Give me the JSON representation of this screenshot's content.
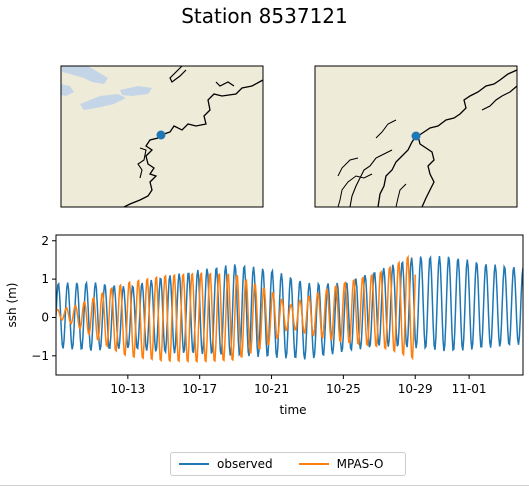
{
  "title": "Station 8537121",
  "maps": [
    {
      "name": "regional",
      "land_color": "#efebd9",
      "water_color": "#c5d5e8"
    },
    {
      "name": "local",
      "land_color": "#efebd9",
      "water_color": "#c5d5e8"
    }
  ],
  "station_marker_color": "#1f77b4",
  "chart_data": {
    "type": "line",
    "title": "",
    "xlabel": "time",
    "ylabel": "ssh (m)",
    "x_range_days": [
      "10-09",
      "11-04"
    ],
    "ylim": [
      -1.5,
      2.15
    ],
    "yticks": [
      -1,
      0,
      1,
      2
    ],
    "ytick_labels": [
      "−1",
      "0",
      "1",
      "2"
    ],
    "xticks": [
      "10-13",
      "10-17",
      "10-21",
      "10-25",
      "10-29",
      "11-01"
    ],
    "grid": false,
    "legend_position": "bottom-center",
    "series": [
      {
        "name": "observed",
        "color": "#1f77b4",
        "x_start": "10-09",
        "x_end": "11-04",
        "period_hours": 12.42,
        "amplitude_envelope": [
          [
            0,
            0.85
          ],
          [
            2,
            0.9
          ],
          [
            4,
            0.8
          ],
          [
            6,
            1.0
          ],
          [
            8,
            1.1
          ],
          [
            10,
            1.2
          ],
          [
            12,
            1.15
          ],
          [
            14,
            1.0
          ],
          [
            16,
            0.9
          ],
          [
            18,
            1.0
          ],
          [
            20,
            1.2
          ],
          [
            22,
            1.25
          ],
          [
            24,
            1.1
          ],
          [
            26,
            1.0
          ]
        ],
        "offset_envelope": [
          [
            0,
            0.05
          ],
          [
            4,
            0.0
          ],
          [
            8,
            0.15
          ],
          [
            10,
            0.2
          ],
          [
            12,
            0.1
          ],
          [
            14,
            -0.1
          ],
          [
            16,
            0.0
          ],
          [
            18,
            0.25
          ],
          [
            20,
            0.4
          ],
          [
            22,
            0.35
          ],
          [
            24,
            0.3
          ],
          [
            26,
            0.3
          ]
        ]
      },
      {
        "name": "MPAS-O",
        "color": "#ff7f0e",
        "x_start": "10-09",
        "x_end": "10-29",
        "period_hours": 12.0,
        "amplitude_envelope": [
          [
            0,
            0.1
          ],
          [
            1,
            0.25
          ],
          [
            2,
            0.5
          ],
          [
            3,
            0.8
          ],
          [
            4,
            1.0
          ],
          [
            6,
            1.15
          ],
          [
            8,
            1.2
          ],
          [
            10,
            1.15
          ],
          [
            12,
            0.7
          ],
          [
            13,
            0.3
          ],
          [
            14,
            0.5
          ],
          [
            16,
            0.8
          ],
          [
            18,
            1.0
          ],
          [
            19,
            1.2
          ],
          [
            20,
            1.45
          ]
        ],
        "offset_envelope": [
          [
            0,
            0.1
          ],
          [
            2,
            0.0
          ],
          [
            4,
            -0.05
          ],
          [
            8,
            0.0
          ],
          [
            12,
            0.0
          ],
          [
            14,
            0.05
          ],
          [
            18,
            0.2
          ],
          [
            20,
            0.3
          ]
        ]
      }
    ]
  }
}
